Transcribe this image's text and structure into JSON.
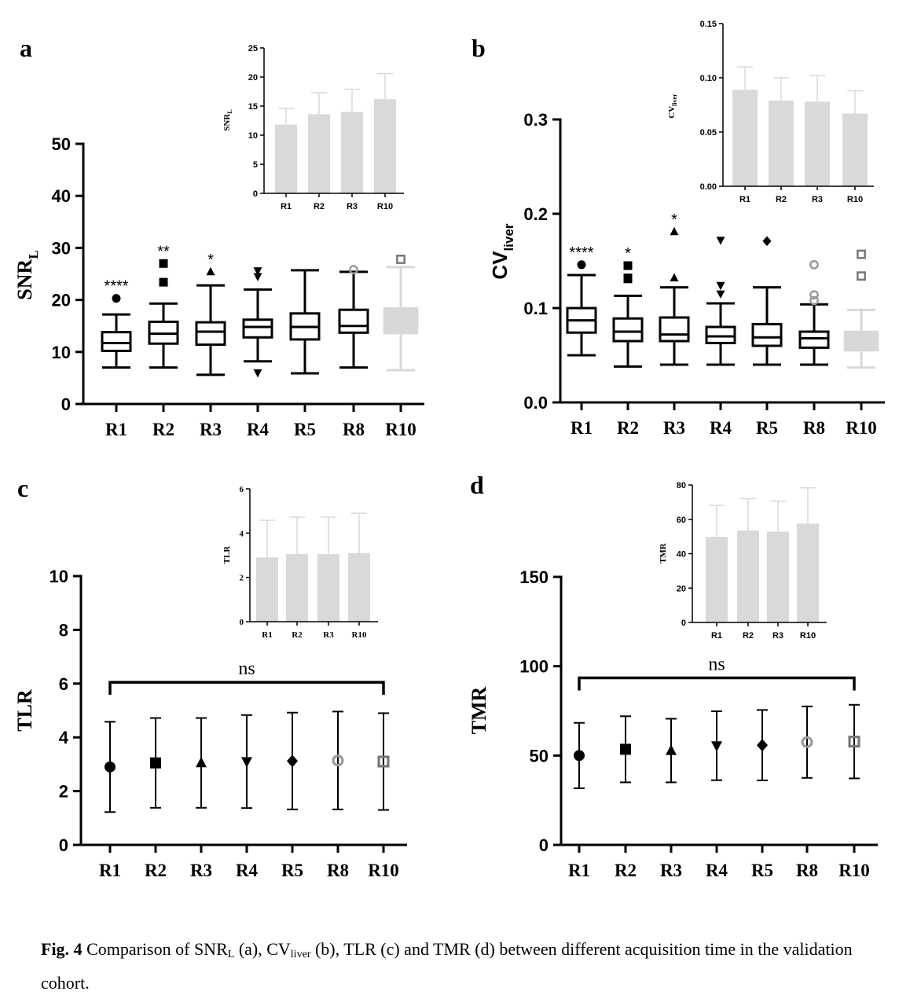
{
  "caption": {
    "label": "Fig. 4",
    "parts": [
      " Comparison of SNR",
      "L",
      " (a), CV",
      "liver",
      " (b), TLR (c) and TMR (d) between different acquisition time in the validation cohort."
    ]
  },
  "chart_data": [
    {
      "panel": "a",
      "type": "box",
      "ylabel": "SNR",
      "ylabel_sub": "L",
      "ylim": [
        0,
        50
      ],
      "yticks": [
        0,
        10,
        20,
        30,
        40,
        50
      ],
      "categories": [
        "R1",
        "R2",
        "R3",
        "R4",
        "R5",
        "R8",
        "R10"
      ],
      "boxes": [
        {
          "min": 7,
          "q1": 10.2,
          "median": 11.7,
          "q3": 13.8,
          "max": 17.2,
          "outliers": [
            20.3
          ],
          "marker": "circle",
          "sig": "****"
        },
        {
          "min": 7,
          "q1": 11.6,
          "median": 13.5,
          "q3": 15.8,
          "max": 19.3,
          "outliers": [
            23.4,
            27
          ],
          "marker": "square",
          "sig": "**"
        },
        {
          "min": 5.6,
          "q1": 11.4,
          "median": 13.9,
          "q3": 15.7,
          "max": 22.8,
          "outliers": [
            25.4
          ],
          "marker": "triangle",
          "sig": "*"
        },
        {
          "min": 8.2,
          "q1": 12.8,
          "median": 14.8,
          "q3": 16.2,
          "max": 22,
          "outliers": [
            6,
            24.5,
            25.6
          ],
          "marker": "triangle-down",
          "sig": ""
        },
        {
          "min": 5.9,
          "q1": 12.4,
          "median": 14.8,
          "q3": 17.4,
          "max": 25.7,
          "outliers": [],
          "marker": "none",
          "sig": ""
        },
        {
          "min": 7,
          "q1": 13.7,
          "median": 15,
          "q3": 18.1,
          "max": 25.4,
          "outliers": [
            25.8
          ],
          "marker": "circle-open",
          "sig": ""
        },
        {
          "min": 6.5,
          "q1": 13.4,
          "median": 16,
          "q3": 18.6,
          "max": 26.3,
          "outliers": [
            27.8
          ],
          "marker": "square-open",
          "sig": "",
          "color": "#d8d8d8"
        }
      ],
      "inset": {
        "type": "bar",
        "ylabel": "SNR",
        "ylabel_sub": "L",
        "ylim": [
          0,
          25
        ],
        "yticks": [
          0,
          5,
          10,
          15,
          20,
          25
        ],
        "categories": [
          "R1",
          "R2",
          "R3",
          "R10"
        ],
        "values": [
          11.8,
          13.6,
          14,
          16.2
        ],
        "errors": [
          2.8,
          3.7,
          3.9,
          4.4
        ]
      }
    },
    {
      "panel": "b",
      "type": "box",
      "ylabel": "CV",
      "ylabel_sub": "liver",
      "ylim": [
        0,
        0.3
      ],
      "yticks": [
        0.0,
        0.1,
        0.2,
        0.3
      ],
      "ytick_labels": [
        "0.0",
        "0.1",
        "0.2",
        "0.3"
      ],
      "categories": [
        "R1",
        "R2",
        "R3",
        "R4",
        "R5",
        "R8",
        "R10"
      ],
      "boxes": [
        {
          "min": 0.05,
          "q1": 0.074,
          "median": 0.087,
          "q3": 0.1,
          "max": 0.135,
          "outliers": [
            0.146
          ],
          "marker": "circle",
          "sig": "****"
        },
        {
          "min": 0.038,
          "q1": 0.065,
          "median": 0.075,
          "q3": 0.089,
          "max": 0.113,
          "outliers": [
            0.131,
            0.132,
            0.145
          ],
          "marker": "square",
          "sig": "*"
        },
        {
          "min": 0.04,
          "q1": 0.065,
          "median": 0.072,
          "q3": 0.09,
          "max": 0.122,
          "outliers": [
            0.132,
            0.181
          ],
          "marker": "triangle",
          "sig": "*"
        },
        {
          "min": 0.04,
          "q1": 0.063,
          "median": 0.07,
          "q3": 0.08,
          "max": 0.105,
          "outliers": [
            0.115,
            0.124,
            0.172
          ],
          "marker": "triangle-down",
          "sig": ""
        },
        {
          "min": 0.04,
          "q1": 0.06,
          "median": 0.069,
          "q3": 0.083,
          "max": 0.122,
          "outliers": [
            0.171
          ],
          "marker": "diamond",
          "sig": ""
        },
        {
          "min": 0.04,
          "q1": 0.058,
          "median": 0.068,
          "q3": 0.075,
          "max": 0.104,
          "outliers": [
            0.108,
            0.114,
            0.146
          ],
          "marker": "circle-open",
          "sig": ""
        },
        {
          "min": 0.037,
          "q1": 0.054,
          "median": 0.064,
          "q3": 0.076,
          "max": 0.098,
          "outliers": [
            0.134,
            0.157
          ],
          "marker": "square-open",
          "sig": "",
          "color": "#d8d8d8"
        }
      ],
      "inset": {
        "type": "bar",
        "ylabel": "CV",
        "ylabel_sub": "liver",
        "ylim": [
          0,
          0.15
        ],
        "yticks": [
          0,
          0.05,
          0.1,
          0.15
        ],
        "ytick_labels": [
          "0.00",
          "0.05",
          "0.10",
          "0.15"
        ],
        "categories": [
          "R1",
          "R2",
          "R3",
          "R10"
        ],
        "values": [
          0.089,
          0.079,
          0.078,
          0.067
        ],
        "errors": [
          0.021,
          0.021,
          0.024,
          0.021
        ]
      }
    },
    {
      "panel": "c",
      "type": "errorbar",
      "ylabel": "TLR",
      "ylim": [
        0,
        10
      ],
      "yticks": [
        0,
        2,
        4,
        6,
        8,
        10
      ],
      "categories": [
        "R1",
        "R2",
        "R3",
        "R4",
        "R5",
        "R8",
        "R10"
      ],
      "means": [
        2.9,
        3.05,
        3.05,
        3.1,
        3.12,
        3.14,
        3.1
      ],
      "sds": [
        1.68,
        1.67,
        1.67,
        1.73,
        1.8,
        1.82,
        1.8
      ],
      "markers": [
        "circle",
        "square",
        "triangle",
        "triangle-down",
        "diamond",
        "circle-open",
        "square-open"
      ],
      "bracket_label": "ns",
      "bracket_y": 6.05,
      "inset": {
        "type": "bar",
        "ylabel": "TLR",
        "ylim": [
          0,
          6
        ],
        "yticks": [
          0,
          2,
          4,
          6
        ],
        "categories": [
          "R1",
          "R2",
          "R3",
          "R10"
        ],
        "values": [
          2.9,
          3.05,
          3.05,
          3.1
        ],
        "errors": [
          1.68,
          1.67,
          1.67,
          1.8
        ]
      }
    },
    {
      "panel": "d",
      "type": "errorbar",
      "ylabel": "TMR",
      "ylim": [
        0,
        150
      ],
      "yticks": [
        0,
        50,
        100,
        150
      ],
      "categories": [
        "R1",
        "R2",
        "R3",
        "R4",
        "R5",
        "R8",
        "R10"
      ],
      "means": [
        50,
        53.5,
        52.8,
        55.5,
        55.8,
        57.5,
        57.8
      ],
      "sds": [
        18.3,
        18.5,
        17.8,
        19.3,
        19.7,
        20,
        20.6
      ],
      "markers": [
        "circle",
        "square",
        "triangle",
        "triangle-down",
        "diamond",
        "circle-open",
        "square-open"
      ],
      "bracket_label": "ns",
      "bracket_y": 93.5,
      "inset": {
        "type": "bar",
        "ylabel": "TMR",
        "ylim": [
          0,
          80
        ],
        "yticks": [
          0,
          20,
          40,
          60,
          80
        ],
        "categories": [
          "R1",
          "R2",
          "R3",
          "R10"
        ],
        "values": [
          49.8,
          53.5,
          52.8,
          57.5
        ],
        "errors": [
          18.3,
          18.5,
          17.8,
          20.8
        ]
      }
    }
  ]
}
